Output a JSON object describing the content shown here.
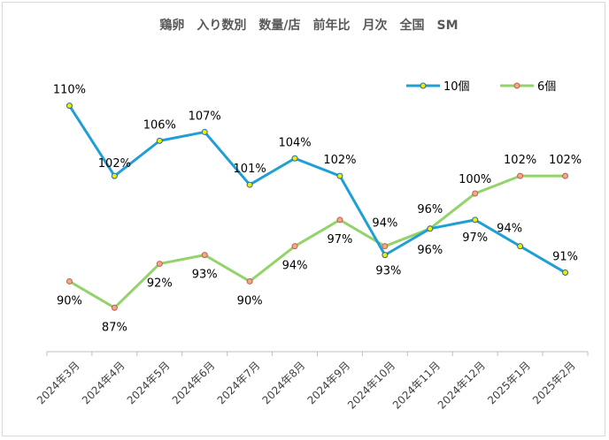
{
  "chart_data": {
    "type": "line",
    "title": "鶏卵　入り数別　数量/店　前年比　月次　全国　SM",
    "categories": [
      "2024年3月",
      "2024年4月",
      "2024年5月",
      "2024年6月",
      "2024年7月",
      "2024年8月",
      "2024年9月",
      "2024年10月",
      "2024年11月",
      "2024年12月",
      "2025年1月",
      "2025年2月"
    ],
    "series": [
      {
        "name": "10個",
        "color": "#1f9fd6",
        "marker_fill": "#f2ea00",
        "values": [
          110,
          102,
          106,
          107,
          101,
          104,
          102,
          93,
          96,
          97,
          94,
          91
        ],
        "labels": [
          "110%",
          "102%",
          "106%",
          "107%",
          "101%",
          "104%",
          "102%",
          "93%",
          "96%",
          "97%",
          "94%",
          "91%"
        ]
      },
      {
        "name": "6個",
        "color": "#92d46a",
        "marker_fill": "#f4a68a",
        "values": [
          90,
          87,
          92,
          93,
          90,
          94,
          97,
          94,
          96,
          100,
          102,
          102
        ],
        "labels": [
          "90%",
          "87%",
          "92%",
          "93%",
          "90%",
          "94%",
          "97%",
          "94%",
          "96%",
          "100%",
          "102%",
          "102%"
        ]
      }
    ],
    "ylim": [
      82,
      117
    ],
    "xlabel": "",
    "ylabel": "",
    "grid": false,
    "legend_position": "top-right"
  }
}
